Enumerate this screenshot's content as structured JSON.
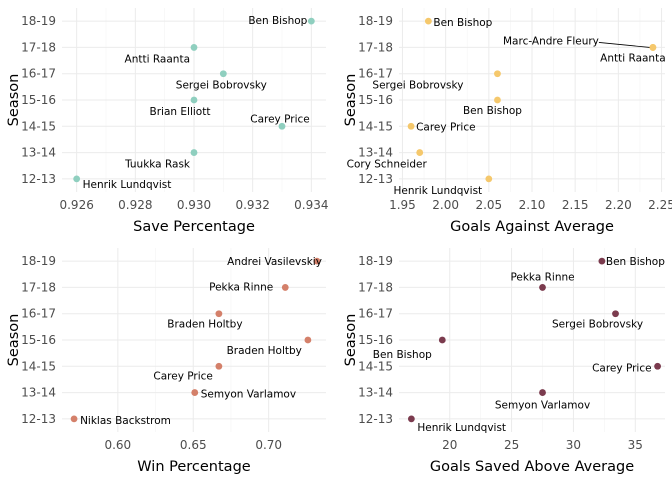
{
  "chart_data": [
    {
      "type": "scatter",
      "xlabel": "Save Percentage",
      "ylabel": "Season",
      "color": "#8fcfbf",
      "categories": [
        "12-13",
        "13-14",
        "14-15",
        "15-16",
        "16-17",
        "17-18",
        "18-19"
      ],
      "xlim": [
        0.9255,
        0.9345
      ],
      "xticks": [
        "0.926",
        "0.928",
        "0.930",
        "0.932",
        "0.934"
      ],
      "grid": true,
      "points": [
        {
          "season": "18-19",
          "x": 0.934,
          "label": "Ben Bishop"
        },
        {
          "season": "17-18",
          "x": 0.93,
          "label": "Antti Raanta"
        },
        {
          "season": "16-17",
          "x": 0.931,
          "label": "Sergei Bobrovsky"
        },
        {
          "season": "15-16",
          "x": 0.93,
          "label": "Brian Elliott"
        },
        {
          "season": "14-15",
          "x": 0.933,
          "label": "Carey Price"
        },
        {
          "season": "13-14",
          "x": 0.93,
          "label": "Tuukka Rask"
        },
        {
          "season": "12-13",
          "x": 0.926,
          "label": "Henrik Lundqvist"
        }
      ]
    },
    {
      "type": "scatter",
      "xlabel": "Goals Against Average",
      "ylabel": "Season",
      "color": "#f5c86c",
      "categories": [
        "12-13",
        "13-14",
        "14-15",
        "15-16",
        "16-17",
        "17-18",
        "18-19"
      ],
      "xlim": [
        1.946,
        2.254
      ],
      "xticks": [
        "1.95",
        "2.00",
        "2.05",
        "2.10",
        "2.15",
        "2.20",
        "2.25"
      ],
      "grid": true,
      "points": [
        {
          "season": "18-19",
          "x": 1.98,
          "label": "Ben Bishop"
        },
        {
          "season": "17-18",
          "x": 2.24,
          "label": "Marc-Andre Fleury"
        },
        {
          "season": "17-18",
          "x": 2.24,
          "label": "Antti Raanta"
        },
        {
          "season": "16-17",
          "x": 2.06,
          "label": "Sergei Bobrovsky"
        },
        {
          "season": "15-16",
          "x": 2.06,
          "label": "Ben Bishop"
        },
        {
          "season": "14-15",
          "x": 1.96,
          "label": "Carey Price"
        },
        {
          "season": "13-14",
          "x": 1.97,
          "label": "Cory Schneider"
        },
        {
          "season": "12-13",
          "x": 2.05,
          "label": "Henrik Lundqvist"
        }
      ]
    },
    {
      "type": "scatter",
      "xlabel": "Win Percentage",
      "ylabel": "Season",
      "color": "#d4806a",
      "categories": [
        "12-13",
        "13-14",
        "14-15",
        "15-16",
        "16-17",
        "17-18",
        "18-19"
      ],
      "xlim": [
        0.563,
        0.738
      ],
      "xticks": [
        "0.60",
        "0.65",
        "0.70"
      ],
      "grid": true,
      "points": [
        {
          "season": "18-19",
          "x": 0.732,
          "label": "Andrei Vasilevskiy"
        },
        {
          "season": "17-18",
          "x": 0.711,
          "label": "Pekka Rinne"
        },
        {
          "season": "16-17",
          "x": 0.667,
          "label": "Braden Holtby"
        },
        {
          "season": "15-16",
          "x": 0.726,
          "label": "Braden Holtby"
        },
        {
          "season": "14-15",
          "x": 0.667,
          "label": "Carey Price"
        },
        {
          "season": "13-14",
          "x": 0.651,
          "label": "Semyon Varlamov"
        },
        {
          "season": "12-13",
          "x": 0.571,
          "label": "Niklas Backstrom"
        }
      ]
    },
    {
      "type": "scatter",
      "xlabel": "Goals Saved Above Average",
      "ylabel": "Season",
      "color": "#7b3b4e",
      "categories": [
        "12-13",
        "13-14",
        "14-15",
        "15-16",
        "16-17",
        "17-18",
        "18-19"
      ],
      "xlim": [
        15.9,
        37.4
      ],
      "xticks": [
        "20",
        "25",
        "30",
        "35"
      ],
      "grid": true,
      "points": [
        {
          "season": "18-19",
          "x": 32.3,
          "label": "Ben Bishop"
        },
        {
          "season": "17-18",
          "x": 27.5,
          "label": "Pekka Rinne"
        },
        {
          "season": "16-17",
          "x": 33.4,
          "label": "Sergei Bobrovsky"
        },
        {
          "season": "15-16",
          "x": 19.4,
          "label": "Ben Bishop"
        },
        {
          "season": "14-15",
          "x": 36.8,
          "label": "Carey Price"
        },
        {
          "season": "13-14",
          "x": 27.5,
          "label": "Semyon Varlamov"
        },
        {
          "season": "12-13",
          "x": 16.9,
          "label": "Henrik Lundqvist"
        }
      ]
    }
  ]
}
